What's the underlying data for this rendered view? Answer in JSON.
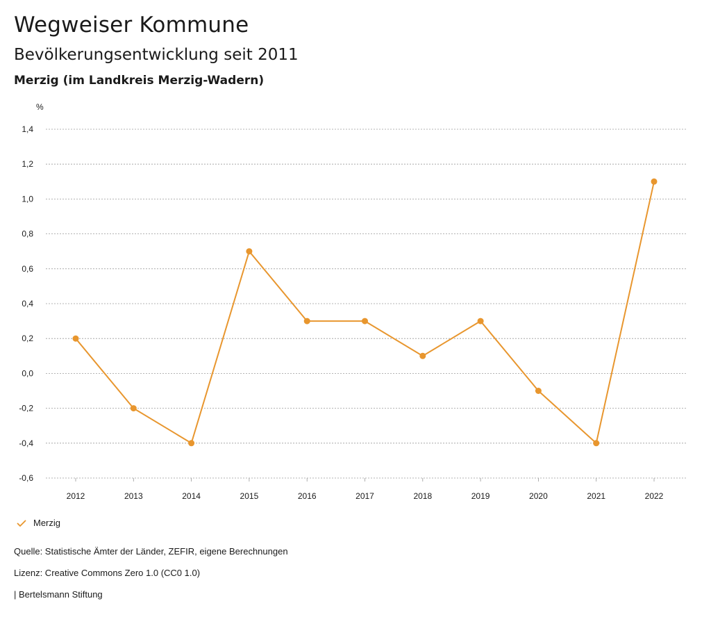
{
  "header": {
    "title": "Wegweiser Kommune",
    "subtitle": "Bevölkerungsentwicklung seit 2011",
    "region": "Merzig (im Landkreis Merzig-Wadern)"
  },
  "colors": {
    "series": "#E8962E",
    "grid": "#9a9a9a"
  },
  "chart_data": {
    "type": "line",
    "title": "Bevölkerungsentwicklung seit 2011",
    "ylabel": "%",
    "xlabel": "",
    "ylim": [
      -0.6,
      1.4
    ],
    "yticks": [
      1.4,
      1.2,
      1.0,
      0.8,
      0.6,
      0.4,
      0.2,
      0.0,
      -0.2,
      -0.4,
      -0.6
    ],
    "ytick_labels": [
      "1,4",
      "1,2",
      "1,0",
      "0,8",
      "0,6",
      "0,4",
      "0,2",
      "0,0",
      "-0,2",
      "-0,4",
      "-0,6"
    ],
    "categories": [
      "2012",
      "2013",
      "2014",
      "2015",
      "2016",
      "2017",
      "2018",
      "2019",
      "2020",
      "2021",
      "2022"
    ],
    "series": [
      {
        "name": "Merzig",
        "values": [
          0.2,
          -0.2,
          -0.4,
          0.7,
          0.3,
          0.3,
          0.1,
          0.3,
          -0.1,
          -0.4,
          1.1
        ]
      }
    ],
    "grid": true,
    "legend": "bottom-left"
  },
  "legend": {
    "label": "Merzig"
  },
  "footer": {
    "source": "Quelle: Statistische Ämter der Länder, ZEFIR, eigene Berechnungen",
    "license": "Lizenz: Creative Commons Zero 1.0 (CC0 1.0)",
    "publisher": "| Bertelsmann Stiftung"
  }
}
